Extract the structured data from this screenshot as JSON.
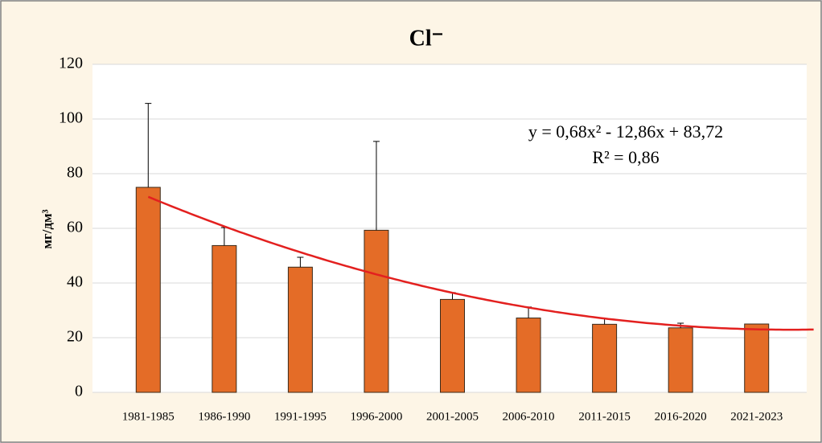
{
  "chart_data": {
    "type": "bar",
    "title": "Cl⁻",
    "ylabel": "мг/дм³",
    "categories": [
      "1981-1985",
      "1986-1990",
      "1991-1995",
      "1996-2000",
      "2001-2005",
      "2006-2010",
      "2011-2015",
      "2016-2020",
      "2021-2023"
    ],
    "values": [
      75,
      53.7,
      45.8,
      59.3,
      34,
      27.2,
      24.9,
      23.6,
      25
    ],
    "errors": [
      30.7,
      6.6,
      3.6,
      32.5,
      2.5,
      4,
      2.1,
      1.7,
      null
    ],
    "color": "#e46c27",
    "trend_color": "#e3201f",
    "ylim": [
      0,
      120
    ],
    "yticks": [
      0,
      20,
      40,
      60,
      80,
      100,
      120
    ],
    "grid": true,
    "trendline": {
      "equation": "y = 0,68x² - 12,86x + 83,72",
      "r2": "R² = 0,86",
      "coefficients": [
        0.68,
        -12.86,
        83.72
      ]
    }
  }
}
